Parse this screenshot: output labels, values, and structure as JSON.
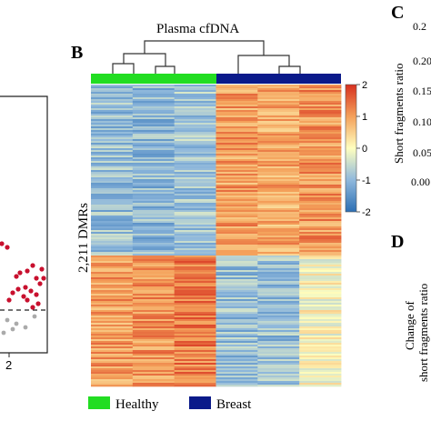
{
  "panels": {
    "b": "B",
    "c": "C",
    "d": "D"
  },
  "left_panel": {
    "x_tick": "2"
  },
  "heatmap": {
    "title": "Plasma cfDNA",
    "row_label": "2,211 DMRs",
    "colorbar_ticks": [
      "2",
      "1",
      "0",
      "-1",
      "-2"
    ],
    "legend": [
      {
        "label": "Healthy",
        "color": "#22dd22"
      },
      {
        "label": "Breast",
        "color": "#0a1a8a"
      }
    ],
    "colors": {
      "high": "#d7301f",
      "mid": "#ffffbf",
      "low": "#2c6fb4"
    }
  },
  "panel_c": {
    "ylabel": "Short fragments ratio",
    "tick_labels": [
      "0.2",
      "0.20",
      "0.15",
      "0.10",
      "0.05",
      "0.00"
    ]
  },
  "panel_d": {
    "ylabel_line1": "Change of",
    "ylabel_line2": "short fragments ratio"
  },
  "chart_data": {
    "type": "heatmap",
    "title": "Plasma cfDNA",
    "ylabel": "2,211 DMRs",
    "groups": [
      "Healthy",
      "Breast"
    ],
    "columns": 6,
    "column_groups": [
      "Healthy",
      "Healthy",
      "Healthy",
      "Breast",
      "Breast",
      "Breast"
    ],
    "row_blocks": [
      {
        "name": "",
        "values": [
          -0.9,
          -1.0,
          -0.8,
          1.0,
          0.9,
          1.1
        ]
      },
      {
        "name": "",
        "values": [
          1.0,
          1.1,
          1.3,
          -0.9,
          -0.9,
          0.0
        ]
      }
    ],
    "color_range": [
      -2,
      2
    ]
  }
}
